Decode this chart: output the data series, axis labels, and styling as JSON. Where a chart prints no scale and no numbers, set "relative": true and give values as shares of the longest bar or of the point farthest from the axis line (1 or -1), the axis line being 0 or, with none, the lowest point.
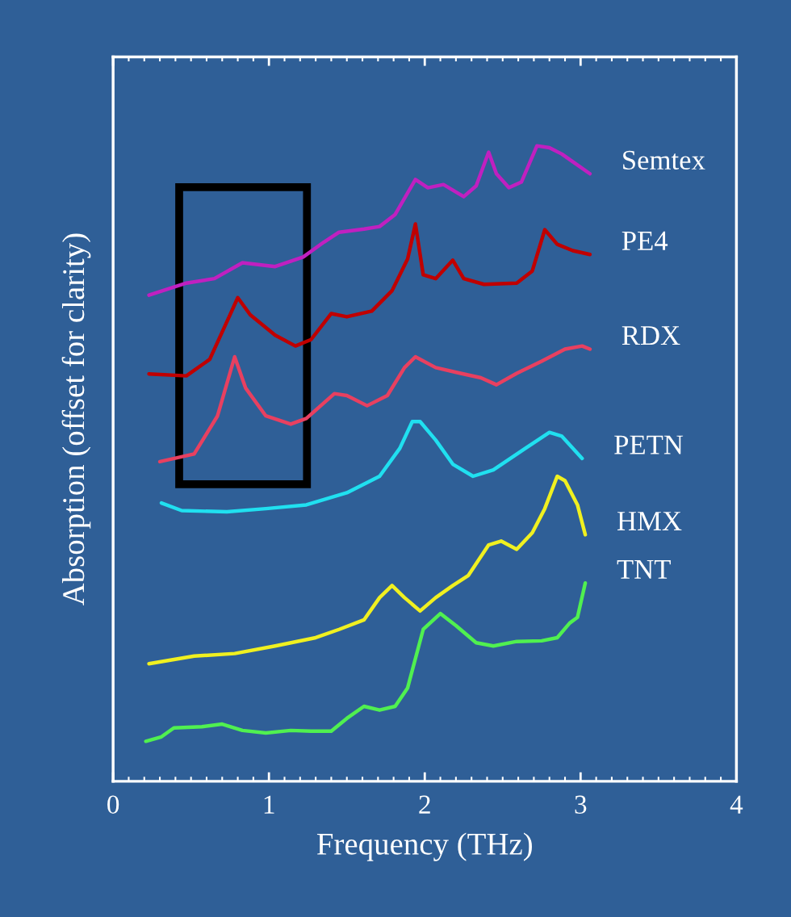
{
  "chart_data": {
    "type": "line",
    "relative": true,
    "xlabel": "Frequency (THz)",
    "ylabel": "Absorption (offset for clarity)",
    "xlim": [
      0,
      4
    ],
    "xticks": [
      0,
      1,
      2,
      3,
      4
    ],
    "tick_labels": "x",
    "grid": false,
    "legend": false,
    "series": [
      {
        "name": "Semtex",
        "color": "#c020c0",
        "x": [
          0.23,
          0.47,
          0.65,
          0.83,
          1.04,
          1.22,
          1.35,
          1.45,
          1.61,
          1.71,
          1.81,
          1.94,
          2.02,
          2.12,
          2.25,
          2.33,
          2.41,
          2.46,
          2.54,
          2.62,
          2.72,
          2.8,
          2.88,
          2.95,
          3.06
        ],
        "values": [
          0.765,
          0.784,
          0.791,
          0.816,
          0.81,
          0.825,
          0.848,
          0.864,
          0.869,
          0.873,
          0.892,
          0.947,
          0.934,
          0.939,
          0.92,
          0.937,
          0.99,
          0.956,
          0.934,
          0.943,
          1.0,
          0.997,
          0.987,
          0.975,
          0.956
        ]
      },
      {
        "name": "PE4",
        "color": "#c00000",
        "x": [
          0.23,
          0.47,
          0.62,
          0.75,
          0.8,
          0.88,
          1.04,
          1.17,
          1.27,
          1.4,
          1.5,
          1.66,
          1.79,
          1.89,
          1.94,
          1.99,
          2.07,
          2.18,
          2.25,
          2.38,
          2.59,
          2.69,
          2.77,
          2.85,
          2.95,
          3.06
        ],
        "values": [
          0.641,
          0.638,
          0.664,
          0.734,
          0.761,
          0.734,
          0.702,
          0.685,
          0.695,
          0.736,
          0.731,
          0.74,
          0.772,
          0.822,
          0.877,
          0.797,
          0.791,
          0.82,
          0.791,
          0.782,
          0.784,
          0.803,
          0.868,
          0.845,
          0.835,
          0.829
        ]
      },
      {
        "name": "RDX",
        "color": "#e84060",
        "x": [
          0.3,
          0.52,
          0.67,
          0.78,
          0.85,
          0.98,
          1.14,
          1.24,
          1.42,
          1.5,
          1.63,
          1.76,
          1.87,
          1.94,
          2.07,
          2.23,
          2.36,
          2.46,
          2.59,
          2.75,
          2.9,
          3.01,
          3.06
        ],
        "values": [
          0.503,
          0.515,
          0.575,
          0.668,
          0.619,
          0.575,
          0.562,
          0.571,
          0.61,
          0.607,
          0.591,
          0.607,
          0.651,
          0.668,
          0.651,
          0.642,
          0.635,
          0.624,
          0.642,
          0.661,
          0.68,
          0.685,
          0.68
        ]
      },
      {
        "name": "PETN",
        "color": "#20e0f0",
        "x": [
          0.31,
          0.44,
          0.73,
          0.98,
          1.24,
          1.5,
          1.71,
          1.84,
          1.92,
          1.97,
          2.07,
          2.18,
          2.31,
          2.44,
          2.64,
          2.8,
          2.88,
          3.01
        ],
        "values": [
          0.438,
          0.426,
          0.424,
          0.429,
          0.435,
          0.454,
          0.48,
          0.524,
          0.566,
          0.566,
          0.537,
          0.499,
          0.48,
          0.49,
          0.523,
          0.549,
          0.543,
          0.508
        ]
      },
      {
        "name": "HMX",
        "color": "#f0f020",
        "x": [
          0.23,
          0.52,
          0.78,
          1.04,
          1.3,
          1.45,
          1.61,
          1.71,
          1.79,
          1.87,
          1.97,
          2.07,
          2.18,
          2.28,
          2.41,
          2.49,
          2.59,
          2.69,
          2.77,
          2.85,
          2.9,
          2.98,
          3.03
        ],
        "values": [
          0.185,
          0.197,
          0.201,
          0.213,
          0.226,
          0.239,
          0.254,
          0.289,
          0.308,
          0.289,
          0.268,
          0.289,
          0.308,
          0.324,
          0.372,
          0.378,
          0.365,
          0.391,
          0.429,
          0.48,
          0.473,
          0.435,
          0.388
        ]
      },
      {
        "name": "TNT",
        "color": "#50f050",
        "x": [
          0.21,
          0.31,
          0.39,
          0.57,
          0.7,
          0.83,
          0.98,
          1.14,
          1.27,
          1.4,
          1.5,
          1.61,
          1.71,
          1.81,
          1.89,
          1.99,
          2.1,
          2.2,
          2.33,
          2.44,
          2.59,
          2.75,
          2.85,
          2.93,
          2.98,
          3.03
        ],
        "values": [
          0.063,
          0.07,
          0.084,
          0.086,
          0.09,
          0.08,
          0.076,
          0.08,
          0.079,
          0.079,
          0.099,
          0.118,
          0.112,
          0.118,
          0.147,
          0.239,
          0.264,
          0.245,
          0.218,
          0.213,
          0.22,
          0.221,
          0.226,
          0.249,
          0.258,
          0.312
        ]
      }
    ]
  }
}
